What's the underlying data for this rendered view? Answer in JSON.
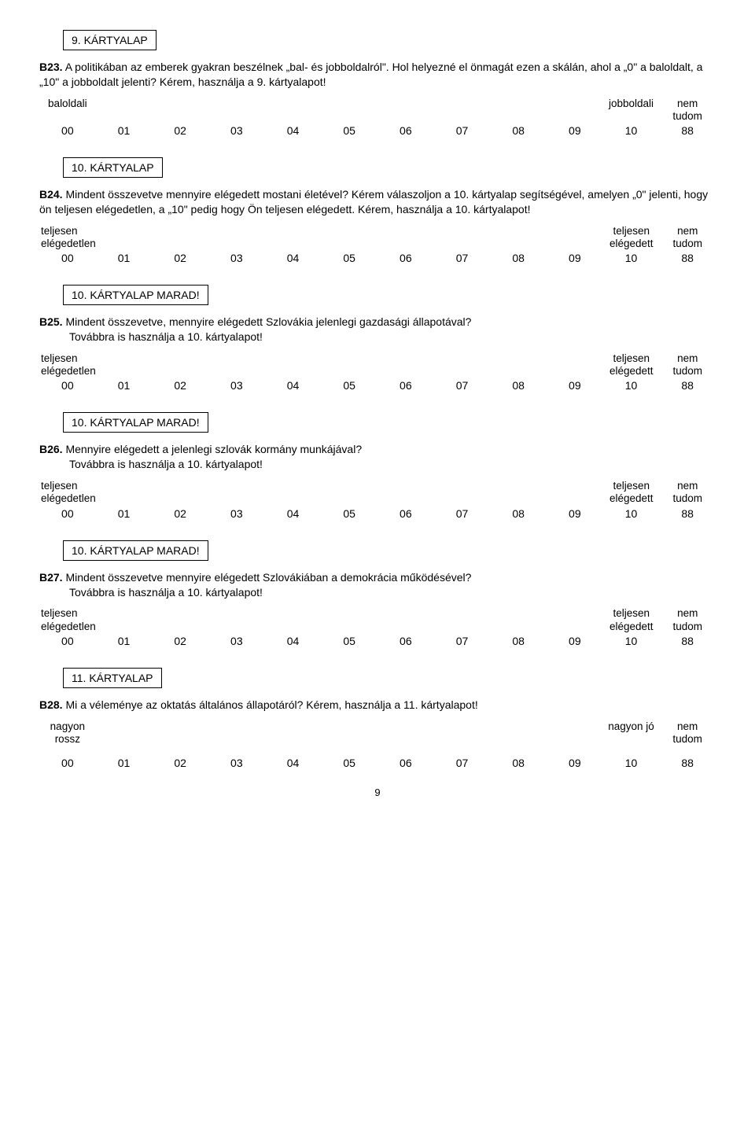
{
  "cards": {
    "c9": "9. KÁRTYALAP",
    "c10": "10. KÁRTYALAP",
    "c10marad": "10. KÁRTYALAP MARAD!",
    "c11": "11. KÁRTYALAP"
  },
  "questions": {
    "b23": {
      "label": "B23.",
      "text": "A politikában az emberek gyakran beszélnek „bal- és jobboldalról\". Hol helyezné el önmagát ezen a skálán, ahol a „0\" a baloldalt, a „10\" a jobboldalt jelenti? Kérem, használja a 9. kártyalapot!"
    },
    "b24": {
      "label": "B24.",
      "text": "Mindent összevetve mennyire elégedett mostani életével? Kérem válaszoljon a 10. kártyalap segítségével, amelyen „0\" jelenti, hogy ön teljesen elégedetlen, a „10\" pedig hogy Ön teljesen elégedett. Kérem, használja a 10. kártyalapot!"
    },
    "b25": {
      "label": "B25.",
      "text": "Mindent összevetve, mennyire elégedett Szlovákia jelenlegi gazdasági állapotával?",
      "sub": "Továbbra is használja a 10. kártyalapot!"
    },
    "b26": {
      "label": "B26.",
      "text": "Mennyire elégedett a jelenlegi szlovák  kormány munkájával?",
      "sub": "Továbbra is használja a 10. kártyalapot!"
    },
    "b27": {
      "label": "B27.",
      "text": "Mindent összevetve mennyire elégedett Szlovákiában a demokrácia működésével?",
      "sub": "Továbbra is használja a 10. kártyalapot!"
    },
    "b28": {
      "label": "B28.",
      "text": "Mi a véleménye az oktatás általános állapotáról? Kérem, használja a 11. kártyalapot!"
    }
  },
  "scales": {
    "labels_lr": {
      "left": "baloldali",
      "right": "jobboldali",
      "dk": "nem\ntudom"
    },
    "labels_sat": {
      "left": "teljesen\nelégedetlen",
      "right": "teljesen\nelégedett",
      "dk": "nem\ntudom"
    },
    "labels_good": {
      "left": "nagyon\nrossz",
      "right": "nagyon jó",
      "dk": "nem\ntudom"
    },
    "nums": [
      "00",
      "01",
      "02",
      "03",
      "04",
      "05",
      "06",
      "07",
      "08",
      "09",
      "10",
      "88"
    ]
  },
  "page_number": "9"
}
